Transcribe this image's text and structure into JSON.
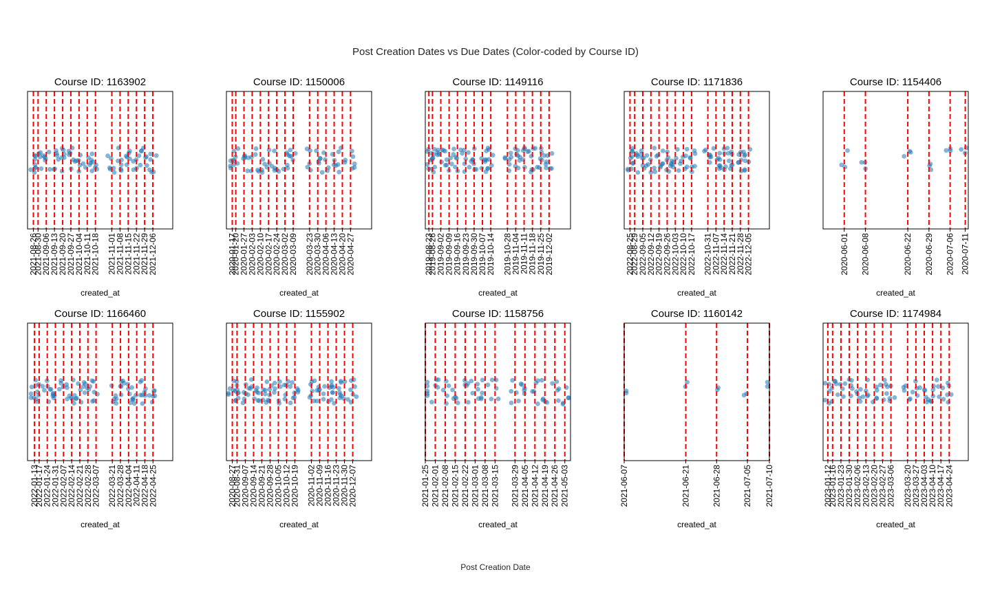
{
  "figure": {
    "title": "Post Creation Dates vs Due Dates (Color-coded by Course ID)",
    "supxlabel": "Post Creation Date"
  },
  "colors": {
    "points": "#1f77b4",
    "due_lines": "#ff0000",
    "frame": "#000000"
  },
  "chart_data": [
    {
      "type": "scatter",
      "title": "Course ID: 1163902",
      "xlabel": "created_at",
      "xlim": [
        "2021-08-21",
        "2021-12-23"
      ],
      "due_dates": [
        "2021-08-26",
        "2021-08-30",
        "2021-09-06",
        "2021-09-13",
        "2021-09-20",
        "2021-09-27",
        "2021-10-04",
        "2021-10-11",
        "2021-10-18",
        "2021-11-01",
        "2021-11-08",
        "2021-11-15",
        "2021-11-22",
        "2021-11-29",
        "2021-12-06"
      ],
      "grid": false,
      "posts_per_cluster": 6
    },
    {
      "type": "scatter",
      "title": "Course ID: 1150006",
      "xlabel": "created_at",
      "xlim": [
        "2020-01-12",
        "2020-05-15"
      ],
      "due_dates": [
        "2020-01-17",
        "2020-01-20",
        "2020-01-27",
        "2020-02-03",
        "2020-02-10",
        "2020-02-17",
        "2020-02-24",
        "2020-03-02",
        "2020-03-09",
        "2020-03-23",
        "2020-03-30",
        "2020-04-06",
        "2020-04-13",
        "2020-04-20",
        "2020-04-27"
      ],
      "grid": false,
      "posts_per_cluster": 5
    },
    {
      "type": "scatter",
      "title": "Course ID: 1149116",
      "xlabel": "created_at",
      "xlim": [
        "2019-08-20",
        "2019-12-20"
      ],
      "due_dates": [
        "2019-08-23",
        "2019-08-26",
        "2019-09-02",
        "2019-09-09",
        "2019-09-16",
        "2019-09-23",
        "2019-09-30",
        "2019-10-07",
        "2019-10-14",
        "2019-10-28",
        "2019-11-04",
        "2019-11-11",
        "2019-11-18",
        "2019-11-25",
        "2019-12-02"
      ],
      "grid": false,
      "posts_per_cluster": 7
    },
    {
      "type": "scatter",
      "title": "Course ID: 1171836",
      "xlabel": "created_at",
      "xlim": [
        "2022-08-20",
        "2022-12-23"
      ],
      "due_dates": [
        "2022-08-25",
        "2022-08-29",
        "2022-09-05",
        "2022-09-12",
        "2022-09-19",
        "2022-09-26",
        "2022-10-03",
        "2022-10-10",
        "2022-10-17",
        "2022-10-31",
        "2022-11-07",
        "2022-11-14",
        "2022-11-21",
        "2022-11-28",
        "2022-12-05"
      ],
      "grid": false,
      "posts_per_cluster": 7
    },
    {
      "type": "scatter",
      "title": "Course ID: 1154406",
      "xlabel": "created_at",
      "xlim": [
        "2020-05-25",
        "2020-07-12"
      ],
      "due_dates": [
        "2020-06-01",
        "2020-06-08",
        "2020-06-22",
        "2020-06-29",
        "2020-07-06",
        "2020-07-11"
      ],
      "grid": false,
      "posts_per_cluster": 3
    },
    {
      "type": "scatter",
      "title": "Course ID: 1166460",
      "xlabel": "created_at",
      "xlim": [
        "2022-01-07",
        "2022-05-12"
      ],
      "due_dates": [
        "2022-01-13",
        "2022-01-17",
        "2022-01-24",
        "2022-01-31",
        "2022-02-07",
        "2022-02-14",
        "2022-02-21",
        "2022-02-28",
        "2022-03-07",
        "2022-03-21",
        "2022-03-28",
        "2022-04-04",
        "2022-04-11",
        "2022-04-18",
        "2022-04-25"
      ],
      "grid": false,
      "posts_per_cluster": 6
    },
    {
      "type": "scatter",
      "title": "Course ID: 1155902",
      "xlabel": "created_at",
      "xlim": [
        "2020-08-22",
        "2020-12-23"
      ],
      "due_dates": [
        "2020-08-27",
        "2020-08-31",
        "2020-09-07",
        "2020-09-14",
        "2020-09-21",
        "2020-09-28",
        "2020-10-05",
        "2020-10-12",
        "2020-10-19",
        "2020-11-02",
        "2020-11-09",
        "2020-11-16",
        "2020-11-23",
        "2020-11-30",
        "2020-12-07"
      ],
      "grid": false,
      "posts_per_cluster": 7
    },
    {
      "type": "scatter",
      "title": "Course ID: 1158756",
      "xlabel": "created_at",
      "xlim": [
        "2021-01-25",
        "2021-05-07"
      ],
      "due_dates": [
        "2021-01-25",
        "2021-02-01",
        "2021-02-08",
        "2021-02-15",
        "2021-02-22",
        "2021-03-01",
        "2021-03-08",
        "2021-03-15",
        "2021-03-29",
        "2021-04-05",
        "2021-04-12",
        "2021-04-19",
        "2021-04-26",
        "2021-05-03"
      ],
      "grid": false,
      "posts_per_cluster": 5
    },
    {
      "type": "scatter",
      "title": "Course ID: 1160142",
      "xlabel": "created_at",
      "xlim": [
        "2021-06-07",
        "2021-07-10"
      ],
      "due_dates": [
        "2021-06-07",
        "2021-06-21",
        "2021-06-28",
        "2021-07-05",
        "2021-07-10"
      ],
      "grid": false,
      "posts_per_cluster": 2
    },
    {
      "type": "scatter",
      "title": "Course ID: 1174984",
      "xlabel": "created_at",
      "xlim": [
        "2023-01-08",
        "2023-05-10"
      ],
      "due_dates": [
        "2023-01-12",
        "2023-01-16",
        "2023-01-23",
        "2023-01-30",
        "2023-02-06",
        "2023-02-13",
        "2023-02-20",
        "2023-02-27",
        "2023-03-06",
        "2023-03-20",
        "2023-03-27",
        "2023-04-03",
        "2023-04-10",
        "2023-04-17",
        "2023-04-24"
      ],
      "grid": false,
      "posts_per_cluster": 5
    }
  ]
}
